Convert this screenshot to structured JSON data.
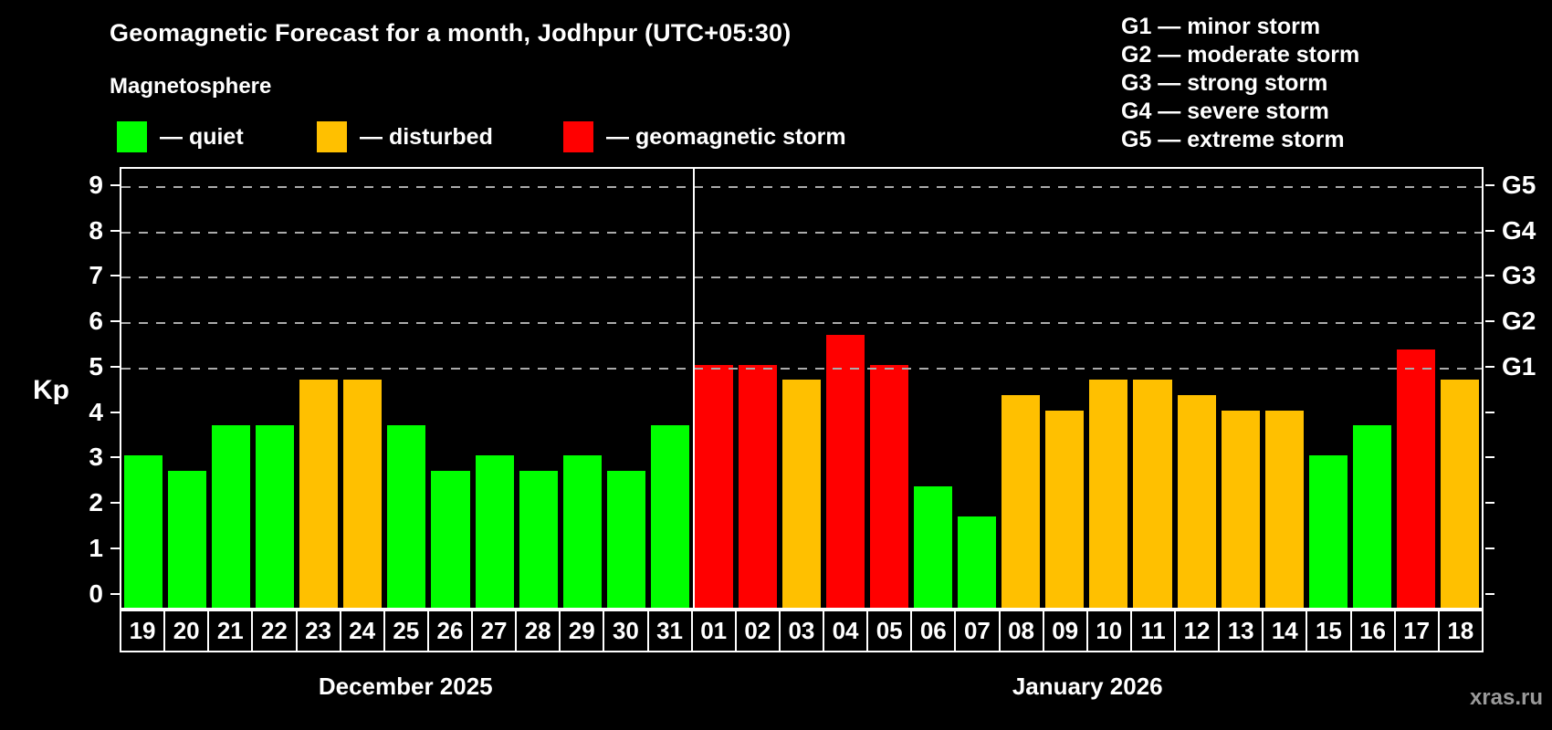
{
  "title": "Geomagnetic Forecast for a month, Jodhpur (UTC+05:30)",
  "subtitle": "Magnetosphere",
  "legend": {
    "items": [
      {
        "key": "quiet",
        "label": "— quiet"
      },
      {
        "key": "disturbed",
        "label": "— disturbed"
      },
      {
        "key": "storm",
        "label": "— geomagnetic storm"
      }
    ]
  },
  "g_legend": [
    "G1 — minor storm",
    "G2 — moderate storm",
    "G3 — strong storm",
    "G4 — severe storm",
    "G5 — extreme storm"
  ],
  "watermark": "xras.ru",
  "chart_data": {
    "type": "bar",
    "title": "Geomagnetic Forecast for a month, Jodhpur (UTC+05:30)",
    "ylabel": "Kp",
    "ylim": [
      0,
      9
    ],
    "yticks": [
      0,
      1,
      2,
      3,
      4,
      5,
      6,
      7,
      8,
      9
    ],
    "gridlines_at_kp": [
      5,
      6,
      7,
      8,
      9
    ],
    "grid": "dashed horizontal at G-storm levels only",
    "legend_position": "top",
    "right_axis_labels": [
      {
        "label": "G1",
        "kp": 5
      },
      {
        "label": "G2",
        "kp": 6
      },
      {
        "label": "G3",
        "kp": 7
      },
      {
        "label": "G4",
        "kp": 8
      },
      {
        "label": "G5",
        "kp": 9
      }
    ],
    "months": [
      {
        "label": "December 2025",
        "days": 13
      },
      {
        "label": "January 2026",
        "days": 18
      }
    ],
    "categories": [
      "19",
      "20",
      "21",
      "22",
      "23",
      "24",
      "25",
      "26",
      "27",
      "28",
      "29",
      "30",
      "31",
      "01",
      "02",
      "03",
      "04",
      "05",
      "06",
      "07",
      "08",
      "09",
      "10",
      "11",
      "12",
      "13",
      "14",
      "15",
      "16",
      "17",
      "18"
    ],
    "values": [
      3.0,
      2.67,
      3.67,
      3.67,
      4.67,
      4.67,
      3.67,
      2.67,
      3.0,
      2.67,
      3.0,
      2.67,
      3.67,
      5.0,
      5.0,
      4.67,
      5.67,
      5.0,
      2.33,
      1.67,
      4.33,
      4.0,
      4.67,
      4.67,
      4.33,
      4.0,
      4.0,
      3.0,
      3.67,
      5.33,
      4.67
    ],
    "statuses": [
      "quiet",
      "quiet",
      "quiet",
      "quiet",
      "disturbed",
      "disturbed",
      "quiet",
      "quiet",
      "quiet",
      "quiet",
      "quiet",
      "quiet",
      "quiet",
      "storm",
      "storm",
      "disturbed",
      "storm",
      "storm",
      "quiet",
      "quiet",
      "disturbed",
      "disturbed",
      "disturbed",
      "disturbed",
      "disturbed",
      "disturbed",
      "disturbed",
      "quiet",
      "quiet",
      "storm",
      "disturbed"
    ],
    "colors": {
      "quiet": "#00ff00",
      "disturbed": "#ffc000",
      "storm": "#ff0000",
      "gridline": "#ababab",
      "axis": "#ffffff",
      "background": "#000000",
      "watermark": "#9a9a9a"
    }
  }
}
